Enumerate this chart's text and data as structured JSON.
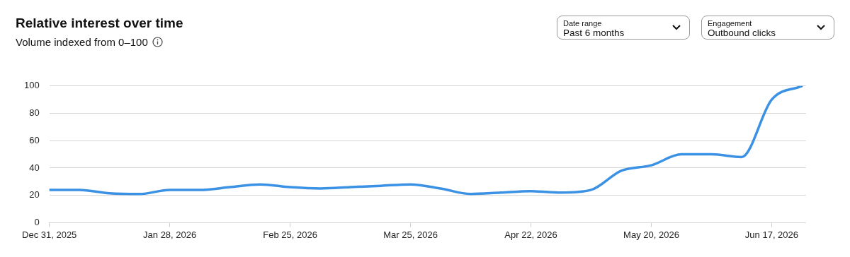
{
  "chart_data": {
    "type": "line",
    "title": "Relative interest over time",
    "subtitle": "Volume indexed from 0–100",
    "annotations": [
      "Date range",
      "Past 6 months",
      "Engagement",
      "Outbound clicks"
    ],
    "x": [
      "2025-12-31",
      "2026-01-07",
      "2026-01-14",
      "2026-01-21",
      "2026-01-28",
      "2026-02-04",
      "2026-02-11",
      "2026-02-18",
      "2026-02-25",
      "2026-03-04",
      "2026-03-11",
      "2026-03-18",
      "2026-03-25",
      "2026-04-01",
      "2026-04-08",
      "2026-04-15",
      "2026-04-22",
      "2026-04-29",
      "2026-05-06",
      "2026-05-13",
      "2026-05-20",
      "2026-05-27",
      "2026-06-03",
      "2026-06-10",
      "2026-06-17",
      "2026-06-24"
    ],
    "series": [
      {
        "color": "#3b91e3",
        "values": [
          24,
          24,
          21.5,
          21,
          24,
          24,
          26,
          28,
          26,
          25,
          26,
          27,
          28,
          25,
          21,
          22,
          23,
          22,
          24,
          38,
          42,
          50,
          50,
          48,
          90,
          100
        ]
      }
    ],
    "xlim": [
      "2025-12-31",
      "2026-06-25"
    ],
    "xticks": [
      {
        "value": "2025-12-31",
        "label": "Dec 31, 2025"
      },
      {
        "value": "2026-01-28",
        "label": "Jan 28, 2026"
      },
      {
        "value": "2026-02-25",
        "label": "Feb 25, 2026"
      },
      {
        "value": "2026-03-25",
        "label": "Mar 25, 2026"
      },
      {
        "value": "2026-04-22",
        "label": "Apr 22, 2026"
      },
      {
        "value": "2026-05-20",
        "label": "May 20, 2026"
      },
      {
        "value": "2026-06-17",
        "label": "Jun 17, 2026"
      }
    ],
    "ylim": [
      0,
      100
    ],
    "yticks": [
      0,
      20,
      40,
      60,
      80,
      100
    ],
    "grid": "y",
    "marker": "none",
    "line_style": "solid"
  }
}
